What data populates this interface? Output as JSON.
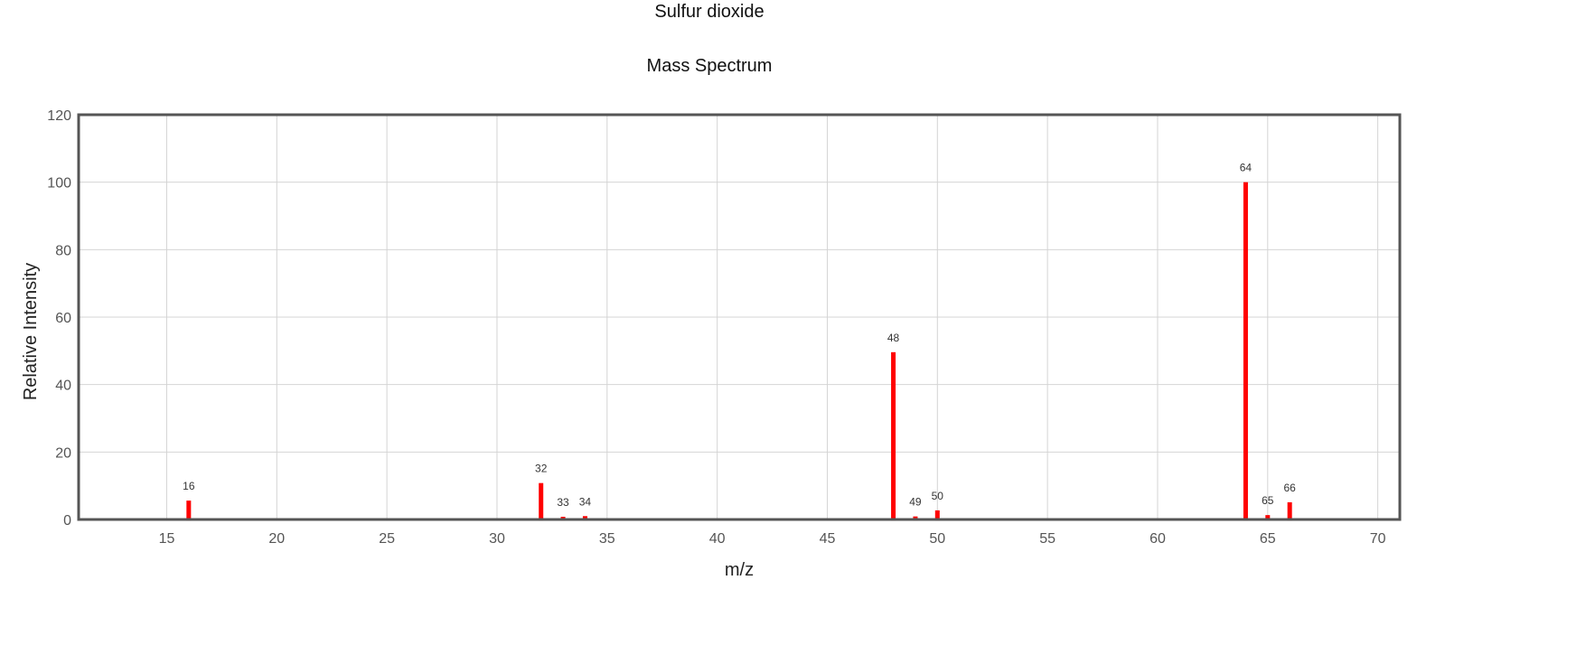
{
  "header": {
    "compound": "Sulfur dioxide",
    "subtitle": "Mass Spectrum"
  },
  "chart_data": {
    "type": "bar",
    "title": "Sulfur dioxide",
    "subtitle": "Mass Spectrum",
    "xlabel": "m/z",
    "ylabel": "Relative Intensity",
    "xlim": [
      11,
      71
    ],
    "ylim": [
      0,
      120
    ],
    "xticks": [
      15,
      20,
      25,
      30,
      35,
      40,
      45,
      50,
      55,
      60,
      65,
      70
    ],
    "yticks": [
      0,
      20,
      40,
      60,
      80,
      100,
      120
    ],
    "grid": true,
    "bar_color": "#ff0000",
    "peaks": [
      {
        "mz": 16,
        "intensity": 5.6,
        "label": "16"
      },
      {
        "mz": 32,
        "intensity": 10.8,
        "label": "32"
      },
      {
        "mz": 33,
        "intensity": 0.8,
        "label": "33"
      },
      {
        "mz": 34,
        "intensity": 1.0,
        "label": "34"
      },
      {
        "mz": 48,
        "intensity": 49.6,
        "label": "48"
      },
      {
        "mz": 49,
        "intensity": 0.9,
        "label": "49"
      },
      {
        "mz": 50,
        "intensity": 2.7,
        "label": "50"
      },
      {
        "mz": 64,
        "intensity": 100,
        "label": "64"
      },
      {
        "mz": 65,
        "intensity": 1.3,
        "label": "65"
      },
      {
        "mz": 66,
        "intensity": 5.1,
        "label": "66"
      }
    ]
  }
}
